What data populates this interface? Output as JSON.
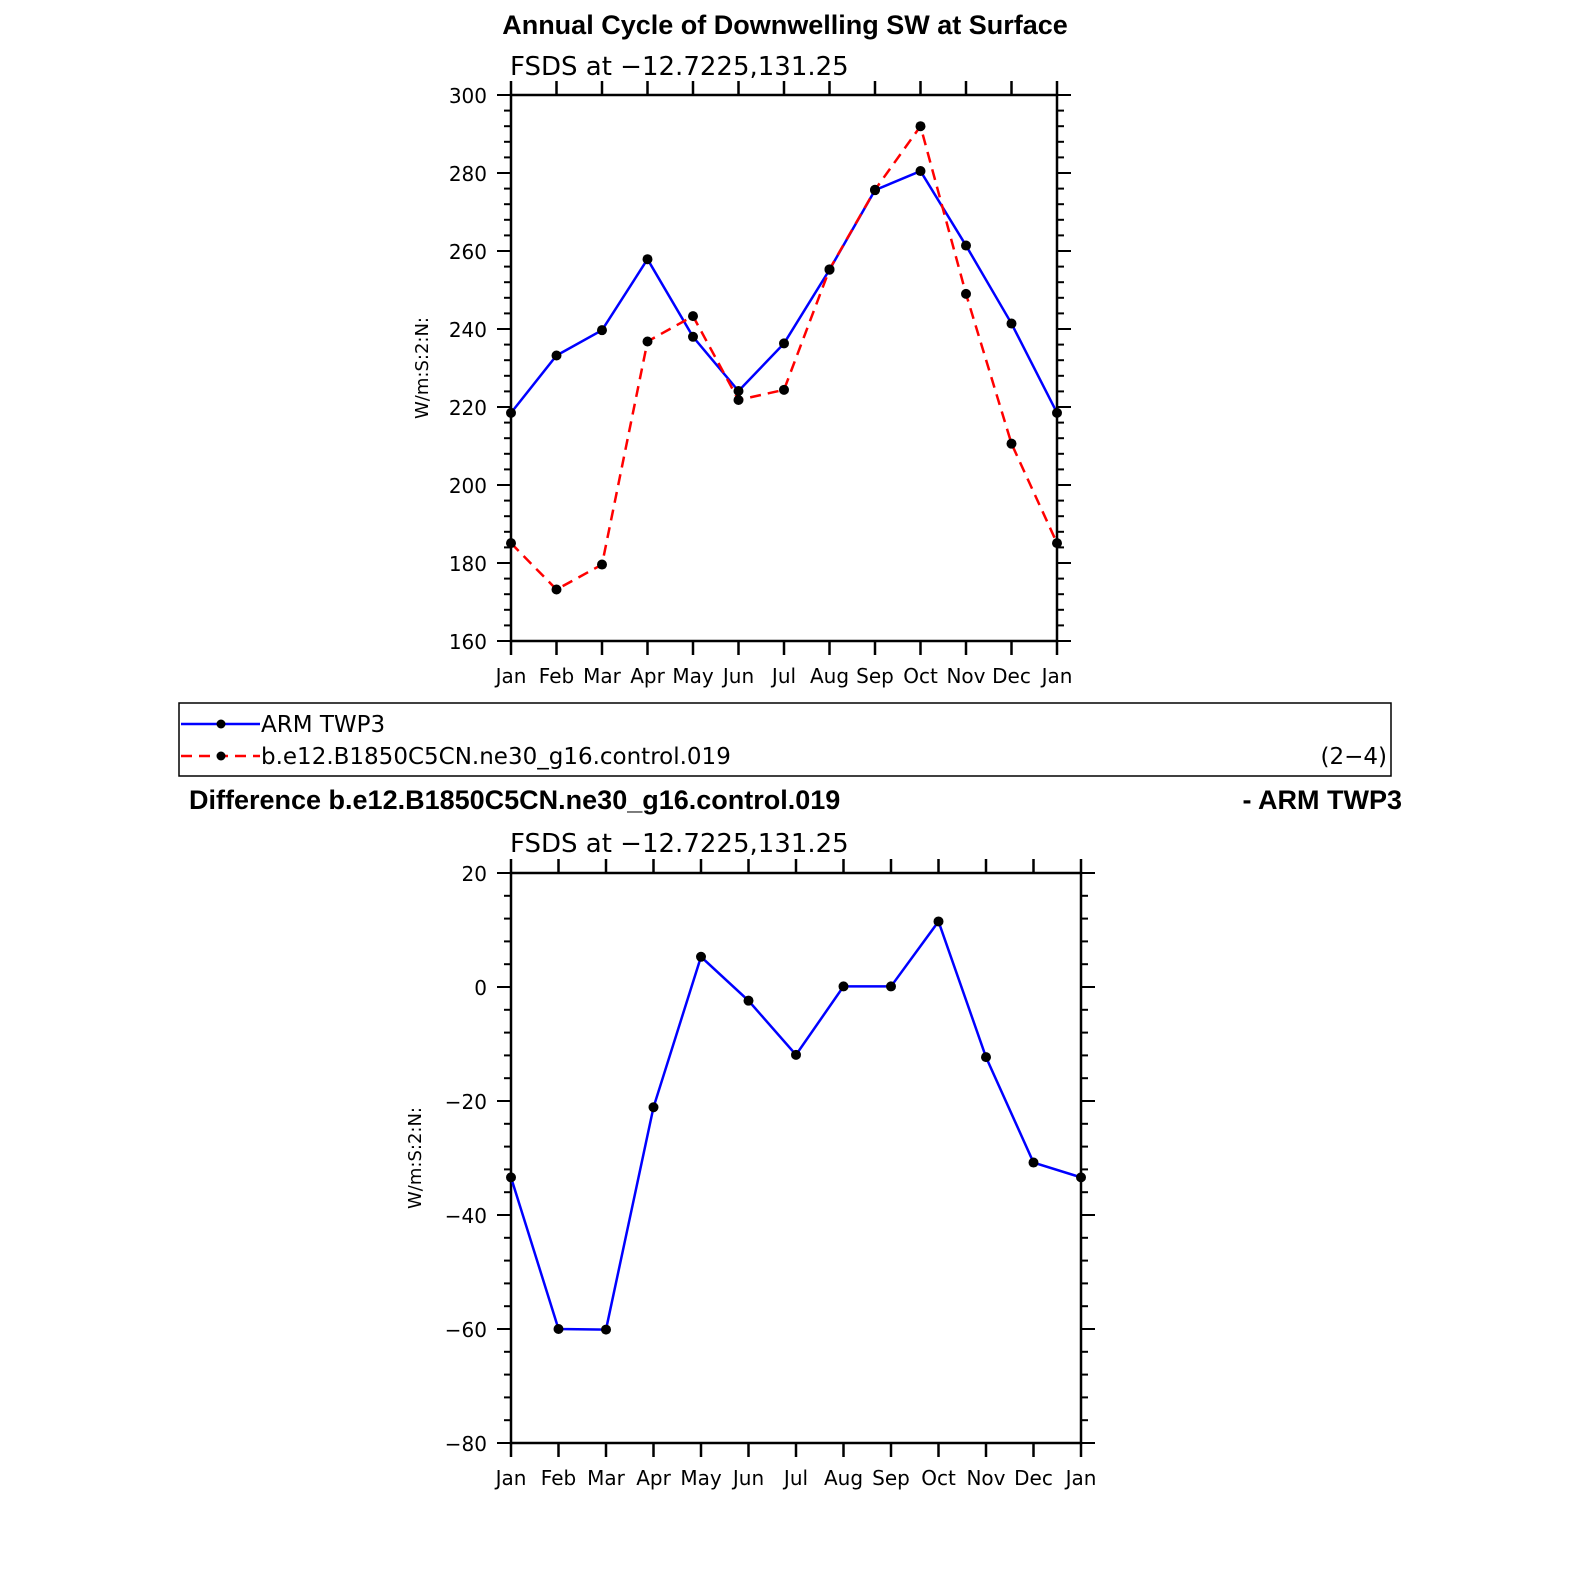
{
  "chart_data": [
    {
      "type": "line",
      "title": "Annual Cycle of Downwelling SW at Surface",
      "subtitle": "FSDS at −12.7225,131.25",
      "ylabel": "W/m:S:2:N:",
      "xlabel": "",
      "categories": [
        "Jan",
        "Feb",
        "Mar",
        "Apr",
        "May",
        "Jun",
        "Jul",
        "Aug",
        "Sep",
        "Oct",
        "Nov",
        "Dec",
        "Jan"
      ],
      "ylim": [
        160,
        300
      ],
      "yticks": [
        160,
        180,
        200,
        220,
        240,
        260,
        280,
        300
      ],
      "grid": false,
      "series": [
        {
          "name": "ARM TWP3",
          "color": "#0000ff",
          "dash": "solid",
          "values": [
            218.5,
            233.2,
            239.7,
            257.9,
            238.0,
            224.1,
            236.3,
            255.2,
            275.6,
            280.5,
            261.4,
            241.4,
            218.5
          ]
        },
        {
          "name": "b.e12.B1850C5CN.ne30_g16.control.019",
          "color": "#ff0000",
          "dash": "dashed",
          "values": [
            185.1,
            173.2,
            179.6,
            236.8,
            243.3,
            221.8,
            224.4,
            255.3,
            275.7,
            292.0,
            249.0,
            210.6,
            185.1
          ]
        }
      ]
    },
    {
      "type": "line",
      "title": "Difference b.e12.B1850C5CN.ne30_g16.control.019",
      "title_right": "- ARM TWP3",
      "subtitle": "FSDS at −12.7225,131.25",
      "ylabel": "W/m:S:2:N:",
      "xlabel": "",
      "categories": [
        "Jan",
        "Feb",
        "Mar",
        "Apr",
        "May",
        "Jun",
        "Jul",
        "Aug",
        "Sep",
        "Oct",
        "Nov",
        "Dec",
        "Jan"
      ],
      "ylim": [
        -80,
        20
      ],
      "yticks": [
        -80,
        -60,
        -40,
        -20,
        0,
        20
      ],
      "grid": false,
      "series": [
        {
          "name": "",
          "color": "#0000ff",
          "dash": "solid",
          "values": [
            -33.4,
            -60.0,
            -60.1,
            -21.1,
            5.3,
            -2.4,
            -11.9,
            0.1,
            0.1,
            11.5,
            -12.3,
            -30.8,
            -33.4
          ]
        }
      ]
    }
  ],
  "legend": {
    "items": [
      {
        "label": "ARM TWP3",
        "color": "#0000ff",
        "dash": "solid"
      },
      {
        "label": "b.e12.B1850C5CN.ne30_g16.control.019",
        "color": "#ff0000",
        "dash": "dashed"
      }
    ],
    "panel_tag": "(2−4)"
  }
}
